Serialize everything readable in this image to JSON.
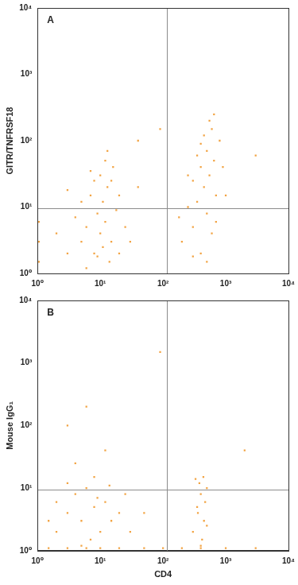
{
  "chart_data": [
    {
      "type": "scatter",
      "panel_label": "A",
      "y_label": "GITR/TNFRSF18",
      "color": "#f2a444",
      "marker": "square",
      "log": true,
      "grid": false,
      "xlim": [
        1,
        10000
      ],
      "ylim": [
        1,
        10000
      ],
      "xticks": [
        {
          "value": 1,
          "label": "10⁰"
        },
        {
          "value": 10,
          "label": "10¹"
        },
        {
          "value": 100,
          "label": "10²"
        },
        {
          "value": 1000,
          "label": "10³"
        },
        {
          "value": 10000,
          "label": "10⁴"
        }
      ],
      "yticks": [
        {
          "value": 1,
          "label": "10⁰"
        },
        {
          "value": 10,
          "label": "10¹"
        },
        {
          "value": 100,
          "label": "10²"
        },
        {
          "value": 1000,
          "label": "10³"
        },
        {
          "value": 10000,
          "label": "10⁴"
        }
      ],
      "gates": {
        "x": 115,
        "y": 9.5
      },
      "x": [
        3,
        5,
        8,
        10,
        12,
        6,
        15,
        20,
        9,
        11,
        7,
        13,
        10,
        8,
        16,
        12,
        5,
        4,
        2,
        18,
        25,
        30,
        14,
        6,
        9,
        11,
        3,
        20,
        7,
        15,
        1.05,
        1.05,
        1.05,
        40,
        13,
        200,
        300,
        400,
        500,
        600,
        350,
        450,
        550,
        650,
        500,
        400,
        300,
        250,
        700,
        800,
        600,
        450,
        550,
        350,
        250,
        500,
        300,
        700,
        900,
        400,
        180,
        650,
        40,
        90,
        1000,
        3000
      ],
      "values": [
        2,
        3,
        2,
        4,
        6,
        5,
        3,
        2,
        8,
        12,
        15,
        20,
        30,
        25,
        40,
        50,
        12,
        7,
        4,
        9,
        5,
        3,
        1.5,
        1.2,
        1.8,
        2.5,
        18,
        15,
        35,
        25,
        3,
        6,
        1.5,
        20,
        70,
        3,
        5,
        2,
        8,
        4,
        12,
        20,
        30,
        50,
        70,
        40,
        25,
        10,
        15,
        100,
        150,
        120,
        200,
        60,
        30,
        1.5,
        1.8,
        6,
        40,
        90,
        7,
        250,
        100,
        150,
        15,
        60
      ]
    },
    {
      "type": "scatter",
      "panel_label": "B",
      "y_label": "Mouse IgG₁",
      "x_label": "CD4",
      "color": "#f2a444",
      "marker": "square",
      "log": true,
      "grid": false,
      "xlim": [
        1,
        10000
      ],
      "ylim": [
        1,
        10000
      ],
      "xticks": [
        {
          "value": 1,
          "label": "10⁰"
        },
        {
          "value": 10,
          "label": "10¹"
        },
        {
          "value": 100,
          "label": "10²"
        },
        {
          "value": 1000,
          "label": "10³"
        },
        {
          "value": 10000,
          "label": "10⁴"
        }
      ],
      "yticks": [
        {
          "value": 1,
          "label": "10⁰"
        },
        {
          "value": 10,
          "label": "10¹"
        },
        {
          "value": 100,
          "label": "10²"
        },
        {
          "value": 1000,
          "label": "10³"
        },
        {
          "value": 10000,
          "label": "10⁴"
        }
      ],
      "gates": {
        "x": 115,
        "y": 9.5
      },
      "x": [
        2,
        3,
        5,
        8,
        10,
        4,
        6,
        12,
        15,
        3,
        20,
        7,
        9,
        5,
        2,
        14,
        1.5,
        25,
        30,
        4,
        8,
        12,
        3,
        6,
        50,
        1.5,
        3,
        6,
        10,
        20,
        50,
        100,
        200,
        400,
        1000,
        3000,
        300,
        350,
        400,
        450,
        500,
        380,
        420,
        330,
        470,
        360,
        440,
        500,
        400,
        90,
        2000
      ],
      "values": [
        2,
        4,
        3,
        5,
        2,
        8,
        10,
        6,
        3,
        12,
        4,
        1.5,
        7,
        1.2,
        6,
        11,
        3,
        8,
        2,
        25,
        15,
        40,
        100,
        200,
        4,
        1.1,
        1.1,
        1.1,
        1.1,
        1.1,
        1.1,
        1.1,
        1.1,
        1.1,
        1.1,
        1.1,
        2,
        5,
        8,
        3,
        10,
        12,
        1.5,
        14,
        6,
        4,
        15,
        2.5,
        1.2,
        1500,
        40
      ]
    }
  ]
}
